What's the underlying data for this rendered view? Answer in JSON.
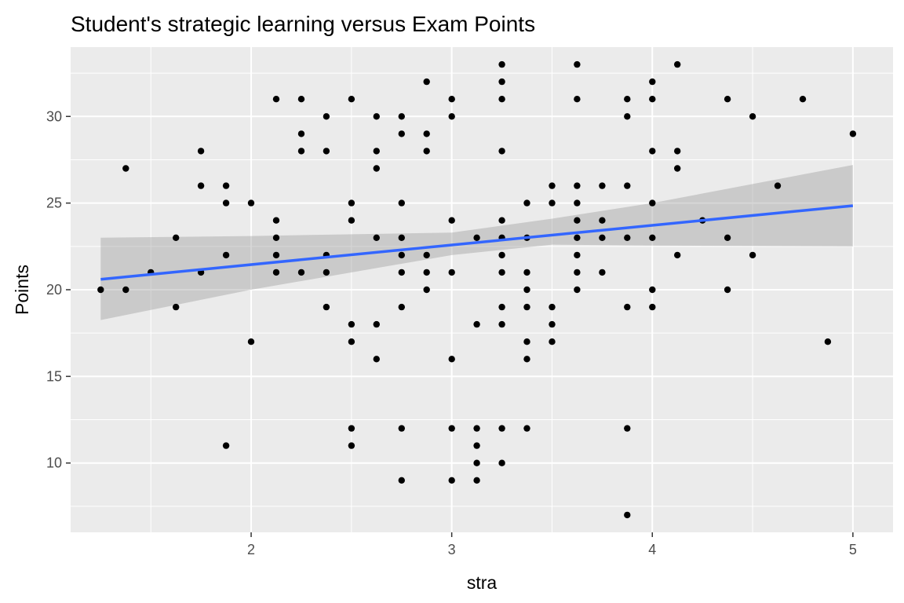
{
  "chart_data": {
    "type": "scatter",
    "title": "Student's strategic learning versus Exam Points",
    "xlabel": "stra",
    "ylabel": "Points",
    "xlim": [
      1.1,
      5.2
    ],
    "ylim": [
      6.0,
      34.0
    ],
    "x_ticks": [
      2,
      3,
      4,
      5
    ],
    "y_ticks": [
      10,
      15,
      20,
      25,
      30
    ],
    "grid": true,
    "legend": "none",
    "colors": {
      "panel_background": "#ebebeb",
      "grid_line": "#ffffff",
      "points": "#000000",
      "trend_line": "#3366ff",
      "confidence_band": "#999999",
      "tick_label": "#4d4d4d",
      "tick_mark": "#333333"
    },
    "trend": {
      "method": "lm",
      "x": [
        1.25,
        5.0
      ],
      "y": [
        20.6,
        24.85
      ],
      "ci": {
        "x": [
          1.25,
          2.0,
          3.0,
          3.5,
          4.0,
          5.0
        ],
        "lower": [
          18.25,
          20.0,
          22.0,
          22.6,
          22.55,
          22.5
        ],
        "upper": [
          23.0,
          23.1,
          23.3,
          24.1,
          25.0,
          27.2
        ]
      }
    },
    "points": [
      [
        1.25,
        20
      ],
      [
        1.375,
        27
      ],
      [
        1.375,
        20
      ],
      [
        1.5,
        21
      ],
      [
        1.625,
        23
      ],
      [
        1.625,
        19
      ],
      [
        1.75,
        28
      ],
      [
        1.75,
        26
      ],
      [
        1.75,
        21
      ],
      [
        1.875,
        26
      ],
      [
        1.875,
        25
      ],
      [
        1.875,
        22
      ],
      [
        1.875,
        11
      ],
      [
        2.0,
        25
      ],
      [
        2.0,
        17
      ],
      [
        2.125,
        31
      ],
      [
        2.125,
        24
      ],
      [
        2.125,
        23
      ],
      [
        2.125,
        22
      ],
      [
        2.125,
        21
      ],
      [
        2.25,
        31
      ],
      [
        2.25,
        29
      ],
      [
        2.25,
        28
      ],
      [
        2.25,
        21
      ],
      [
        2.375,
        30
      ],
      [
        2.375,
        28
      ],
      [
        2.375,
        22
      ],
      [
        2.375,
        21
      ],
      [
        2.375,
        19
      ],
      [
        2.5,
        31
      ],
      [
        2.5,
        25
      ],
      [
        2.5,
        24
      ],
      [
        2.5,
        18
      ],
      [
        2.5,
        17
      ],
      [
        2.5,
        12
      ],
      [
        2.5,
        11
      ],
      [
        2.625,
        30
      ],
      [
        2.625,
        28
      ],
      [
        2.625,
        27
      ],
      [
        2.625,
        23
      ],
      [
        2.625,
        18
      ],
      [
        2.625,
        16
      ],
      [
        2.75,
        30
      ],
      [
        2.75,
        29
      ],
      [
        2.75,
        25
      ],
      [
        2.75,
        23
      ],
      [
        2.75,
        22
      ],
      [
        2.75,
        21
      ],
      [
        2.75,
        19
      ],
      [
        2.75,
        12
      ],
      [
        2.75,
        9
      ],
      [
        2.875,
        32
      ],
      [
        2.875,
        29
      ],
      [
        2.875,
        28
      ],
      [
        2.875,
        22
      ],
      [
        2.875,
        21
      ],
      [
        2.875,
        20
      ],
      [
        3.0,
        31
      ],
      [
        3.0,
        30
      ],
      [
        3.0,
        24
      ],
      [
        3.0,
        21
      ],
      [
        3.0,
        16
      ],
      [
        3.0,
        12
      ],
      [
        3.0,
        9
      ],
      [
        3.125,
        23
      ],
      [
        3.125,
        18
      ],
      [
        3.125,
        12
      ],
      [
        3.125,
        11
      ],
      [
        3.125,
        10
      ],
      [
        3.125,
        9
      ],
      [
        3.25,
        33
      ],
      [
        3.25,
        32
      ],
      [
        3.25,
        31
      ],
      [
        3.25,
        28
      ],
      [
        3.25,
        24
      ],
      [
        3.25,
        23
      ],
      [
        3.25,
        22
      ],
      [
        3.25,
        21
      ],
      [
        3.25,
        19
      ],
      [
        3.25,
        18
      ],
      [
        3.25,
        12
      ],
      [
        3.25,
        10
      ],
      [
        3.375,
        25
      ],
      [
        3.375,
        23
      ],
      [
        3.375,
        21
      ],
      [
        3.375,
        20
      ],
      [
        3.375,
        19
      ],
      [
        3.375,
        17
      ],
      [
        3.375,
        16
      ],
      [
        3.375,
        12
      ],
      [
        3.5,
        26
      ],
      [
        3.5,
        25
      ],
      [
        3.5,
        19
      ],
      [
        3.5,
        18
      ],
      [
        3.5,
        17
      ],
      [
        3.625,
        33
      ],
      [
        3.625,
        31
      ],
      [
        3.625,
        26
      ],
      [
        3.625,
        25
      ],
      [
        3.625,
        24
      ],
      [
        3.625,
        23
      ],
      [
        3.625,
        22
      ],
      [
        3.625,
        21
      ],
      [
        3.625,
        20
      ],
      [
        3.75,
        26
      ],
      [
        3.75,
        24
      ],
      [
        3.75,
        23
      ],
      [
        3.75,
        21
      ],
      [
        3.875,
        31
      ],
      [
        3.875,
        30
      ],
      [
        3.875,
        26
      ],
      [
        3.875,
        23
      ],
      [
        3.875,
        19
      ],
      [
        3.875,
        12
      ],
      [
        3.875,
        7
      ],
      [
        4.0,
        32
      ],
      [
        4.0,
        31
      ],
      [
        4.0,
        28
      ],
      [
        4.0,
        25
      ],
      [
        4.0,
        23
      ],
      [
        4.0,
        20
      ],
      [
        4.0,
        19
      ],
      [
        4.125,
        33
      ],
      [
        4.125,
        28
      ],
      [
        4.125,
        27
      ],
      [
        4.125,
        22
      ],
      [
        4.25,
        24
      ],
      [
        4.375,
        31
      ],
      [
        4.375,
        23
      ],
      [
        4.375,
        20
      ],
      [
        4.5,
        30
      ],
      [
        4.5,
        22
      ],
      [
        4.625,
        26
      ],
      [
        4.75,
        31
      ],
      [
        4.875,
        17
      ],
      [
        5.0,
        29
      ]
    ]
  }
}
